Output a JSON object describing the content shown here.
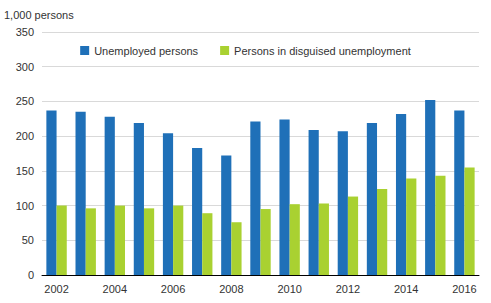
{
  "chart_data": {
    "type": "bar",
    "ylabel": "1,000 persons",
    "categories": [
      "2002",
      null,
      "2004",
      null,
      "2006",
      null,
      "2008",
      null,
      "2010",
      null,
      "2012",
      null,
      "2014",
      null,
      "2016"
    ],
    "series": [
      {
        "name": "Unemployed persons",
        "color": "#1f70b8",
        "values": [
          237,
          235,
          228,
          219,
          204,
          183,
          172,
          221,
          224,
          209,
          207,
          219,
          232,
          252,
          237
        ]
      },
      {
        "name": "Persons in disguised unemployment",
        "color": "#a9d131",
        "values": [
          100,
          96,
          100,
          96,
          100,
          89,
          76,
          95,
          102,
          103,
          113,
          124,
          139,
          143,
          155
        ]
      }
    ],
    "ylim": [
      0,
      350
    ],
    "yticks": [
      0,
      50,
      100,
      150,
      200,
      250,
      300,
      350
    ],
    "grid": true,
    "legend": "top"
  }
}
